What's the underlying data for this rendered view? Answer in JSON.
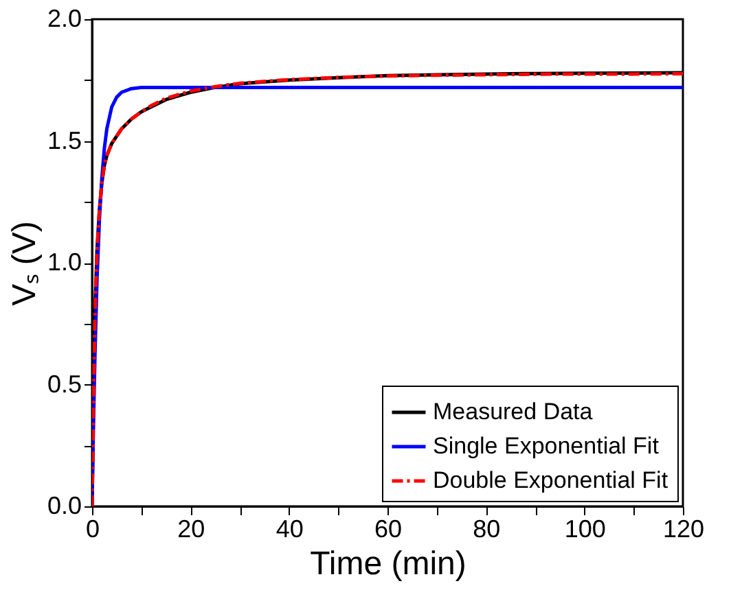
{
  "chart_data": {
    "type": "line",
    "xlabel": "Time (min)",
    "ylabel": "Vₛ (V)",
    "xlim": [
      0,
      120
    ],
    "ylim": [
      0,
      2.0
    ],
    "xticks": [
      0,
      {
        "value": 10,
        "label": null
      },
      20,
      {
        "value": 30,
        "label": null
      },
      40,
      {
        "value": 50,
        "label": null
      },
      60,
      {
        "value": 70,
        "label": null
      },
      80,
      {
        "value": 90,
        "label": null
      },
      100,
      {
        "value": 110,
        "label": null
      },
      120
    ],
    "yticks": [
      {
        "value": 0,
        "label": "0.0"
      },
      {
        "value": 0.25,
        "label": null
      },
      0.5,
      {
        "value": 0.75,
        "label": null
      },
      {
        "value": 1,
        "label": "1.0"
      },
      {
        "value": 1.25,
        "label": null
      },
      1.5,
      {
        "value": 1.75,
        "label": null
      },
      {
        "value": 2,
        "label": "2.0"
      }
    ],
    "legend": "bottom right",
    "grid": false,
    "series": [
      {
        "name": "Measured Data",
        "color": "#000000",
        "line_style": "solid",
        "x": [
          0,
          0.3,
          0.6,
          1,
          1.5,
          2,
          2.5,
          3,
          4,
          5,
          6,
          8,
          10,
          12,
          15,
          20,
          25,
          30,
          40,
          50,
          60,
          70,
          80,
          90,
          100,
          110,
          120
        ],
        "values": [
          0,
          0.45,
          0.8,
          1.05,
          1.22,
          1.33,
          1.4,
          1.44,
          1.49,
          1.52,
          1.55,
          1.59,
          1.62,
          1.64,
          1.67,
          1.7,
          1.72,
          1.735,
          1.75,
          1.76,
          1.768,
          1.772,
          1.775,
          1.777,
          1.778,
          1.779,
          1.78
        ]
      },
      {
        "name": "Single Exponential Fit",
        "color": "#0000ff",
        "line_style": "solid",
        "x": [
          0,
          0.3,
          0.6,
          1,
          1.5,
          2,
          2.5,
          3,
          4,
          5,
          6,
          8,
          10,
          15,
          20,
          30,
          40,
          60,
          80,
          100,
          120
        ],
        "values": [
          0,
          0.35,
          0.63,
          0.93,
          1.18,
          1.35,
          1.47,
          1.55,
          1.64,
          1.68,
          1.7,
          1.715,
          1.72,
          1.72,
          1.72,
          1.72,
          1.72,
          1.72,
          1.72,
          1.72,
          1.72
        ]
      },
      {
        "name": "Double Exponential Fit",
        "color": "#ff0000",
        "line_style": "dashdot",
        "x": [
          0,
          0.3,
          0.6,
          1,
          1.5,
          2,
          2.5,
          3,
          4,
          5,
          6,
          8,
          10,
          12,
          15,
          20,
          25,
          30,
          40,
          50,
          60,
          70,
          80,
          90,
          100,
          110,
          120
        ],
        "values": [
          0,
          0.44,
          0.79,
          1.04,
          1.22,
          1.33,
          1.4,
          1.44,
          1.49,
          1.52,
          1.55,
          1.59,
          1.62,
          1.645,
          1.675,
          1.705,
          1.723,
          1.737,
          1.752,
          1.761,
          1.767,
          1.77,
          1.772,
          1.774,
          1.775,
          1.775,
          1.776
        ]
      }
    ]
  }
}
